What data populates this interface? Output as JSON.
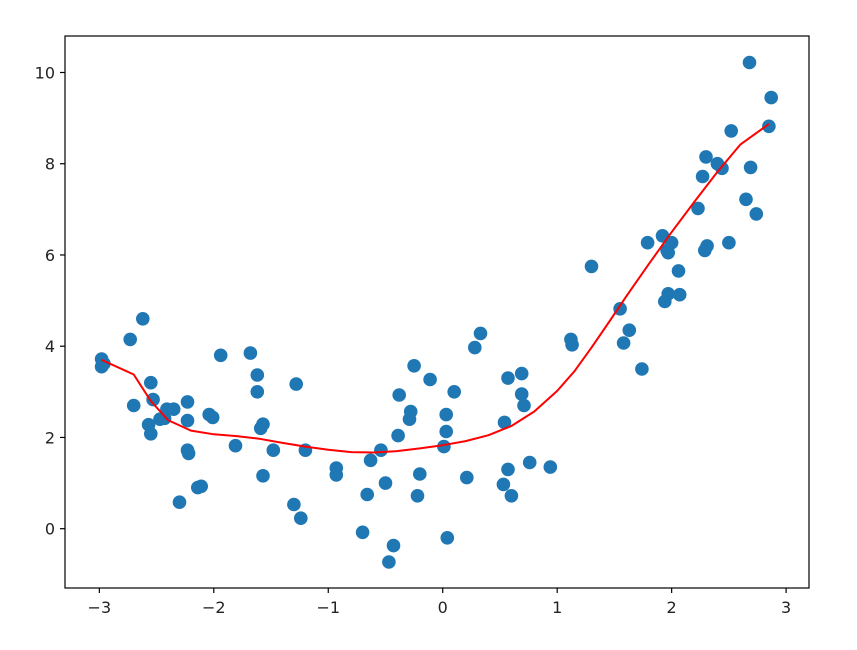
{
  "chart_data": {
    "type": "scatter",
    "title": "",
    "xlabel": "",
    "ylabel": "",
    "xlim": [
      -3.3,
      3.2
    ],
    "ylim": [
      -1.3,
      10.8
    ],
    "xticks": [
      -3,
      -2,
      -1,
      0,
      1,
      2,
      3
    ],
    "xtick_labels": [
      "−3",
      "−2",
      "−1",
      "0",
      "1",
      "2",
      "3"
    ],
    "yticks": [
      0,
      2,
      4,
      6,
      8,
      10
    ],
    "ytick_labels": [
      "0",
      "2",
      "4",
      "6",
      "8",
      "10"
    ],
    "grid": false,
    "legend": "none",
    "colors": {
      "points": "#1f77b4",
      "fit_line": "#ff0000",
      "axes": "#000000"
    },
    "series": [
      {
        "kind": "scatter",
        "points": [
          [
            -2.98,
            3.72
          ],
          [
            -2.98,
            3.55
          ],
          [
            -2.96,
            3.62
          ],
          [
            -2.73,
            4.15
          ],
          [
            -2.7,
            2.7
          ],
          [
            -2.62,
            4.6
          ],
          [
            -2.55,
            3.2
          ],
          [
            -2.57,
            2.28
          ],
          [
            -2.55,
            2.08
          ],
          [
            -2.53,
            2.83
          ],
          [
            -2.47,
            2.4
          ],
          [
            -2.43,
            2.42
          ],
          [
            -2.41,
            2.62
          ],
          [
            -2.35,
            2.62
          ],
          [
            -2.3,
            0.58
          ],
          [
            -2.23,
            2.78
          ],
          [
            -2.23,
            2.37
          ],
          [
            -2.23,
            1.72
          ],
          [
            -2.22,
            1.65
          ],
          [
            -2.14,
            0.9
          ],
          [
            -2.11,
            0.93
          ],
          [
            -2.04,
            2.5
          ],
          [
            -2.01,
            2.44
          ],
          [
            -1.94,
            3.8
          ],
          [
            -1.81,
            1.82
          ],
          [
            -1.68,
            3.85
          ],
          [
            -1.62,
            3.37
          ],
          [
            -1.62,
            3.0
          ],
          [
            -1.59,
            2.2
          ],
          [
            -1.57,
            2.29
          ],
          [
            -1.57,
            1.16
          ],
          [
            -1.48,
            1.72
          ],
          [
            -1.3,
            0.53
          ],
          [
            -1.28,
            3.17
          ],
          [
            -1.24,
            0.23
          ],
          [
            -1.2,
            1.72
          ],
          [
            -0.93,
            1.33
          ],
          [
            -0.93,
            1.18
          ],
          [
            -0.7,
            -0.08
          ],
          [
            -0.66,
            0.75
          ],
          [
            -0.63,
            1.5
          ],
          [
            -0.54,
            1.72
          ],
          [
            -0.5,
            1.0
          ],
          [
            -0.47,
            -0.73
          ],
          [
            -0.43,
            -0.37
          ],
          [
            -0.39,
            2.04
          ],
          [
            -0.38,
            2.93
          ],
          [
            -0.29,
            2.4
          ],
          [
            -0.28,
            2.57
          ],
          [
            -0.25,
            3.57
          ],
          [
            -0.22,
            0.72
          ],
          [
            -0.2,
            1.2
          ],
          [
            -0.11,
            3.27
          ],
          [
            0.01,
            1.8
          ],
          [
            0.03,
            2.5
          ],
          [
            0.03,
            2.13
          ],
          [
            0.04,
            -0.2
          ],
          [
            0.1,
            3.0
          ],
          [
            0.21,
            1.12
          ],
          [
            0.28,
            3.97
          ],
          [
            0.33,
            4.28
          ],
          [
            0.53,
            0.97
          ],
          [
            0.54,
            2.33
          ],
          [
            0.57,
            3.3
          ],
          [
            0.57,
            1.3
          ],
          [
            0.6,
            0.72
          ],
          [
            0.69,
            3.4
          ],
          [
            0.69,
            2.95
          ],
          [
            0.71,
            2.7
          ],
          [
            0.76,
            1.45
          ],
          [
            0.94,
            1.35
          ],
          [
            1.12,
            4.15
          ],
          [
            1.13,
            4.03
          ],
          [
            1.3,
            5.75
          ],
          [
            1.55,
            4.82
          ],
          [
            1.58,
            4.07
          ],
          [
            1.63,
            4.35
          ],
          [
            1.74,
            3.5
          ],
          [
            1.79,
            6.27
          ],
          [
            1.92,
            6.42
          ],
          [
            1.94,
            4.98
          ],
          [
            1.96,
            6.1
          ],
          [
            1.97,
            5.15
          ],
          [
            1.97,
            6.05
          ],
          [
            2.0,
            6.27
          ],
          [
            2.06,
            5.65
          ],
          [
            2.07,
            5.13
          ],
          [
            2.23,
            7.02
          ],
          [
            2.27,
            7.72
          ],
          [
            2.29,
            6.1
          ],
          [
            2.3,
            8.15
          ],
          [
            2.31,
            6.2
          ],
          [
            2.4,
            8.0
          ],
          [
            2.44,
            7.9
          ],
          [
            2.5,
            6.27
          ],
          [
            2.52,
            8.72
          ],
          [
            2.65,
            7.22
          ],
          [
            2.68,
            10.22
          ],
          [
            2.69,
            7.92
          ],
          [
            2.74,
            6.9
          ],
          [
            2.85,
            8.82
          ],
          [
            2.87,
            9.45
          ]
        ]
      },
      {
        "kind": "line",
        "points": [
          [
            -2.98,
            3.7
          ],
          [
            -2.7,
            3.38
          ],
          [
            -2.55,
            2.8
          ],
          [
            -2.4,
            2.38
          ],
          [
            -2.2,
            2.15
          ],
          [
            -2.0,
            2.07
          ],
          [
            -1.8,
            2.03
          ],
          [
            -1.6,
            1.97
          ],
          [
            -1.4,
            1.88
          ],
          [
            -1.2,
            1.8
          ],
          [
            -1.0,
            1.73
          ],
          [
            -0.8,
            1.68
          ],
          [
            -0.6,
            1.67
          ],
          [
            -0.4,
            1.7
          ],
          [
            -0.2,
            1.76
          ],
          [
            0.0,
            1.83
          ],
          [
            0.2,
            1.92
          ],
          [
            0.4,
            2.05
          ],
          [
            0.6,
            2.25
          ],
          [
            0.8,
            2.57
          ],
          [
            1.0,
            3.02
          ],
          [
            1.15,
            3.45
          ],
          [
            1.3,
            3.97
          ],
          [
            1.45,
            4.52
          ],
          [
            1.6,
            5.08
          ],
          [
            1.8,
            5.8
          ],
          [
            2.0,
            6.5
          ],
          [
            2.2,
            7.17
          ],
          [
            2.4,
            7.82
          ],
          [
            2.6,
            8.42
          ],
          [
            2.85,
            8.87
          ]
        ]
      }
    ]
  }
}
